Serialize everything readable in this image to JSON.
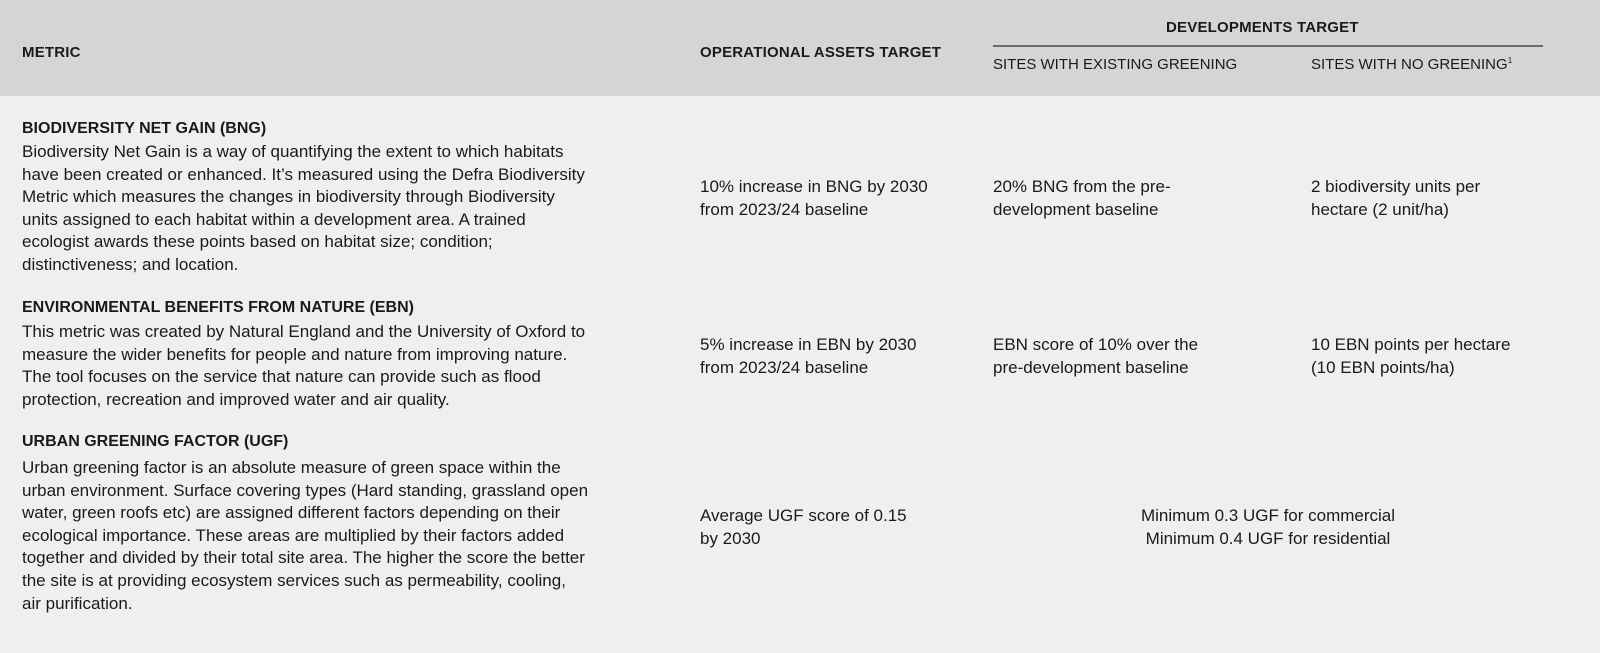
{
  "header": {
    "metric": "METRIC",
    "operational": "OPERATIONAL ASSETS TARGET",
    "developments": "DEVELOPMENTS TARGET",
    "existing": "SITES WITH EXISTING GREENING",
    "no_greening": "SITES WITH NO GREENING",
    "no_greening_footnote": "1"
  },
  "rows": [
    {
      "title": "BIODIVERSITY NET GAIN (BNG)",
      "description": [
        "Biodiversity Net Gain is a way of quantifying the extent to which habitats",
        "have been created or enhanced. It’s measured using the Defra Biodiversity",
        "Metric which measures the changes in biodiversity through Biodiversity",
        "units assigned to each habitat within a development area. A trained",
        "ecologist awards these points based on habitat size; condition;",
        "distinctiveness; and location."
      ],
      "operational": [
        "10% increase in BNG by 2030",
        "from 2023/24 baseline"
      ],
      "existing": [
        "20% BNG from the pre-",
        "development baseline"
      ],
      "no_greening": [
        "2 biodiversity units per",
        "hectare (2 unit/ha)"
      ]
    },
    {
      "title": "ENVIRONMENTAL BENEFITS FROM NATURE (EBN)",
      "description": [
        "This metric was created by Natural England and the University of Oxford to",
        "measure the wider benefits for people and nature from improving nature.",
        "The tool focuses on the service that nature can provide such as flood",
        "protection, recreation and improved water and air quality."
      ],
      "operational": [
        "5% increase in EBN by 2030",
        "from 2023/24 baseline"
      ],
      "existing": [
        "EBN score of 10% over the",
        "pre-development baseline"
      ],
      "no_greening": [
        "10 EBN points per hectare",
        "(10 EBN points/ha)"
      ]
    },
    {
      "title": "URBAN GREENING FACTOR (UGF)",
      "description": [
        "Urban greening factor is an absolute measure of green space within the",
        "urban environment. Surface covering types (Hard standing, grassland open",
        "water, green roofs etc) are assigned different factors depending on their",
        "ecological importance. These areas are multiplied by their factors added",
        "together and divided by their total site area. The higher the score the better",
        "the site is at providing ecosystem services such as permeability, cooling,",
        "air purification."
      ],
      "operational": [
        "Average UGF score of 0.15",
        "by 2030"
      ],
      "developments": [
        "Minimum 0.3 UGF for commercial",
        "Minimum 0.4 UGF for residential"
      ]
    }
  ]
}
